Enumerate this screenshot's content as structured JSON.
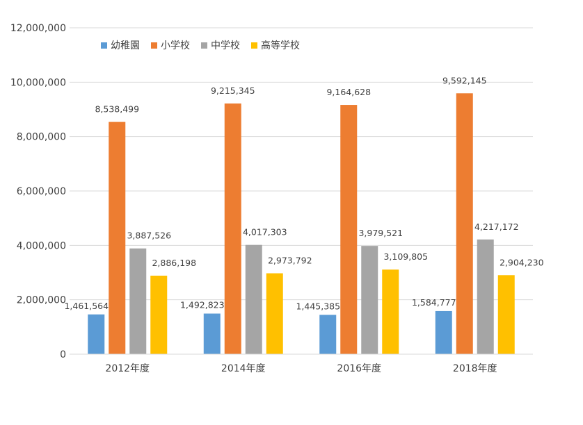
{
  "chart_data": {
    "type": "bar",
    "categories": [
      "2012年度",
      "2014年度",
      "2016年度",
      "2018年度"
    ],
    "series": [
      {
        "name": "幼稚園",
        "color": "#5B9BD5",
        "values": [
          1461564,
          1492823,
          1445385,
          1584777
        ],
        "labels": [
          "1,461,564",
          "1,492,823",
          "1,445,385",
          "1,584,777"
        ]
      },
      {
        "name": "小学校",
        "color": "#ED7D31",
        "values": [
          8538499,
          9215345,
          9164628,
          9592145
        ],
        "labels": [
          "8,538,499",
          "9,215,345",
          "9,164,628",
          "9,592,145"
        ]
      },
      {
        "name": "中学校",
        "color": "#A5A5A5",
        "values": [
          3887526,
          4017303,
          3979521,
          4217172
        ],
        "labels": [
          "3,887,526",
          "4,017,303",
          "3,979,521",
          "4,217,172"
        ]
      },
      {
        "name": "高等学校",
        "color": "#FFC000",
        "values": [
          2886198,
          2973792,
          3109805,
          2904230
        ],
        "labels": [
          "2,886,198",
          "2,973,792",
          "3,109,805",
          "2,904,230"
        ]
      }
    ],
    "ylim": [
      0,
      12000000
    ],
    "yticks": [
      0,
      2000000,
      4000000,
      6000000,
      8000000,
      10000000,
      12000000
    ],
    "ytick_labels": [
      "0",
      "2,000,000",
      "4,000,000",
      "6,000,000",
      "8,000,000",
      "10,000,000",
      "12,000,000"
    ],
    "grid": true,
    "legend": "top-left"
  }
}
